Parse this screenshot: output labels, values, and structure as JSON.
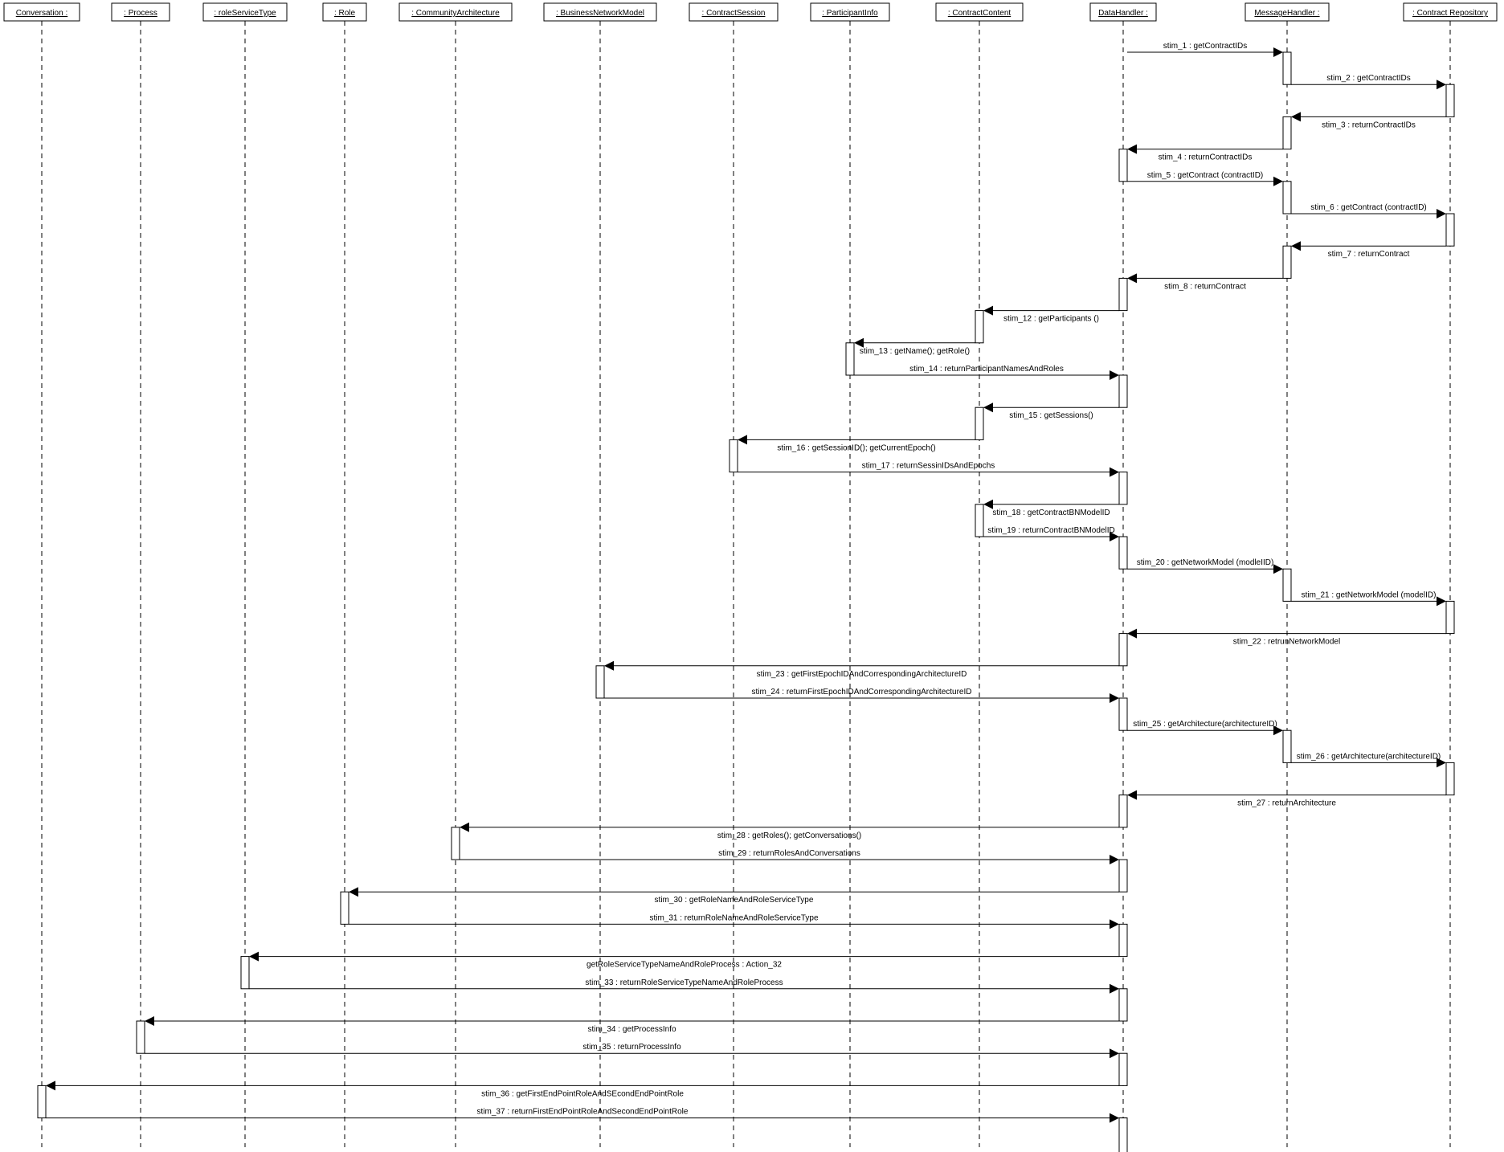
{
  "lifelines": [
    {
      "id": "conversation",
      "label": "Conversation :"
    },
    {
      "id": "process",
      "label": ": Process"
    },
    {
      "id": "roleservicetype",
      "label": ": roleServiceType"
    },
    {
      "id": "role",
      "label": ": Role"
    },
    {
      "id": "communityarchitecture",
      "label": ": CommunityArchitecture"
    },
    {
      "id": "businessnetworkmodel",
      "label": ": BusinessNetworkModel"
    },
    {
      "id": "contractsession",
      "label": ": ContractSession"
    },
    {
      "id": "participantinfo",
      "label": ": ParticipantInfo"
    },
    {
      "id": "contractcontent",
      "label": ": ContractContent"
    },
    {
      "id": "datahandler",
      "label": "DataHandler :"
    },
    {
      "id": "messagehandler",
      "label": "MessageHandler :"
    },
    {
      "id": "contractrepository",
      "label": ": Contract Repository"
    }
  ],
  "messages": [
    {
      "from": "datahandler",
      "to": "messagehandler",
      "label": "stim_1 : getContractIDs"
    },
    {
      "from": "messagehandler",
      "to": "contractrepository",
      "label": "stim_2 : getContractIDs"
    },
    {
      "from": "contractrepository",
      "to": "messagehandler",
      "label": "stim_3 : returnContractIDs"
    },
    {
      "from": "messagehandler",
      "to": "datahandler",
      "label": "stim_4 : returnContractIDs"
    },
    {
      "from": "datahandler",
      "to": "messagehandler",
      "label": "stim_5 : getContract (contractID)"
    },
    {
      "from": "messagehandler",
      "to": "contractrepository",
      "label": "stim_6 : getContract (contractID)"
    },
    {
      "from": "contractrepository",
      "to": "messagehandler",
      "label": "stim_7 : returnContract"
    },
    {
      "from": "messagehandler",
      "to": "datahandler",
      "label": "stim_8 : returnContract"
    },
    {
      "from": "datahandler",
      "to": "contractcontent",
      "label": "stim_12 : getParticipants ()"
    },
    {
      "from": "contractcontent",
      "to": "participantinfo",
      "label": "stim_13 : getName(); getRole()"
    },
    {
      "from": "participantinfo",
      "to": "datahandler",
      "label": "stim_14 : returnParticipantNamesAndRoles"
    },
    {
      "from": "datahandler",
      "to": "contractcontent",
      "label": "stim_15 : getSessions()"
    },
    {
      "from": "contractcontent",
      "to": "contractsession",
      "label": "stim_16 : getSessionID(); getCurrentEpoch()"
    },
    {
      "from": "contractsession",
      "to": "datahandler",
      "label": "stim_17 : returnSessinIDsAndEpochs"
    },
    {
      "from": "datahandler",
      "to": "contractcontent",
      "label": "stim_18 : getContractBNModelID"
    },
    {
      "from": "contractcontent",
      "to": "datahandler",
      "label": "stim_19 : returnContractBNModelID"
    },
    {
      "from": "datahandler",
      "to": "messagehandler",
      "label": "stim_20 : getNetworkModel (modleIID)"
    },
    {
      "from": "messagehandler",
      "to": "contractrepository",
      "label": "stim_21 : getNetworkModel (modelID)"
    },
    {
      "from": "contractrepository",
      "to": "datahandler",
      "label": "stim_22 : retrunNetworkModel"
    },
    {
      "from": "datahandler",
      "to": "businessnetworkmodel",
      "label": "stim_23 : getFirstEpochIDAndCorrespondingArchitectureID"
    },
    {
      "from": "businessnetworkmodel",
      "to": "datahandler",
      "label": "stim_24 : returnFirstEpochIDAndCorrespondingArchitectureID"
    },
    {
      "from": "datahandler",
      "to": "messagehandler",
      "label": "stim_25 : getArchitecture(architectureID)"
    },
    {
      "from": "messagehandler",
      "to": "contractrepository",
      "label": "stim_26 : getArchitecture(architectureID)"
    },
    {
      "from": "contractrepository",
      "to": "datahandler",
      "label": "stim_27 : returnArchitecture"
    },
    {
      "from": "datahandler",
      "to": "communityarchitecture",
      "label": "stim_28 : getRoles(); getConversations()"
    },
    {
      "from": "communityarchitecture",
      "to": "datahandler",
      "label": "stim_29 : returnRolesAndConversations"
    },
    {
      "from": "datahandler",
      "to": "role",
      "label": "stim_30 : getRoleNameAndRoleServiceType"
    },
    {
      "from": "role",
      "to": "datahandler",
      "label": "stim_31 : returnRoleNameAndRoleServiceType"
    },
    {
      "from": "datahandler",
      "to": "roleservicetype",
      "label": "getRoleServiceTypeNameAndRoleProcess : Action_32"
    },
    {
      "from": "roleservicetype",
      "to": "datahandler",
      "label": "stim_33 : returnRoleServiceTypeNameAndRoleProcess"
    },
    {
      "from": "datahandler",
      "to": "process",
      "label": "stim_34 : getProcessInfo"
    },
    {
      "from": "process",
      "to": "datahandler",
      "label": "stim_35 : returnProcessInfo"
    },
    {
      "from": "datahandler",
      "to": "conversation",
      "label": "stim_36 : getFirstEndPointRoleAndSEcondEndPointRole"
    },
    {
      "from": "conversation",
      "to": "datahandler",
      "label": "stim_37 : returnFirstEndPointRoleAndSecondEndPointRole"
    }
  ]
}
